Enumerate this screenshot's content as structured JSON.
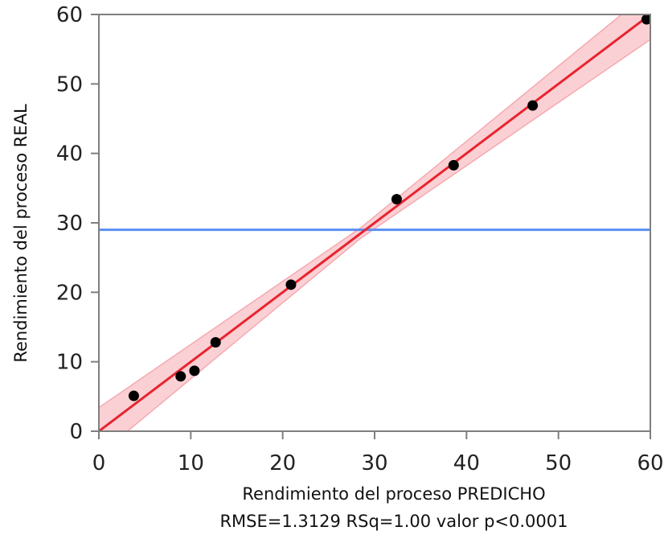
{
  "chart_data": {
    "type": "scatter",
    "title": "",
    "xlabel": "Rendimiento del proceso PREDICHO",
    "ylabel": "Rendimiento del proceso REAL",
    "stats_label": "RMSE=1.3129 RSq=1.00 valor p<0.0001",
    "xlim": [
      0,
      60
    ],
    "ylim": [
      0,
      60
    ],
    "xticks": [
      0,
      10,
      20,
      30,
      40,
      50,
      60
    ],
    "yticks": [
      0,
      10,
      20,
      30,
      40,
      50,
      60
    ],
    "xtick_labels": [
      "0",
      "10",
      "20",
      "30",
      "40",
      "50",
      "60"
    ],
    "ytick_labels": [
      "0",
      "10",
      "20",
      "30",
      "40",
      "50",
      "60"
    ],
    "grid": false,
    "points": [
      {
        "x": 3.8,
        "y": 5.1
      },
      {
        "x": 8.9,
        "y": 7.9
      },
      {
        "x": 10.4,
        "y": 8.7
      },
      {
        "x": 12.7,
        "y": 12.8
      },
      {
        "x": 20.9,
        "y": 21.1
      },
      {
        "x": 32.4,
        "y": 33.4
      },
      {
        "x": 38.6,
        "y": 38.3
      },
      {
        "x": 47.2,
        "y": 46.9
      },
      {
        "x": 59.6,
        "y": 59.3
      }
    ],
    "fit_line": {
      "x": [
        0,
        60
      ],
      "y": [
        0,
        60
      ]
    },
    "mean_line": {
      "y": 29
    },
    "confidence_band": {
      "x": [
        0,
        28.5,
        60
      ],
      "lower": [
        -3.4,
        27.8,
        56.4
      ],
      "upper": [
        3.4,
        29.3,
        63.4
      ]
    },
    "colors": {
      "points": "#000000",
      "fit_line": "#e8242f",
      "confidence_band": "#f5a9b0",
      "mean_line": "#5b8ff0",
      "axis": "#7f7f7f"
    }
  }
}
